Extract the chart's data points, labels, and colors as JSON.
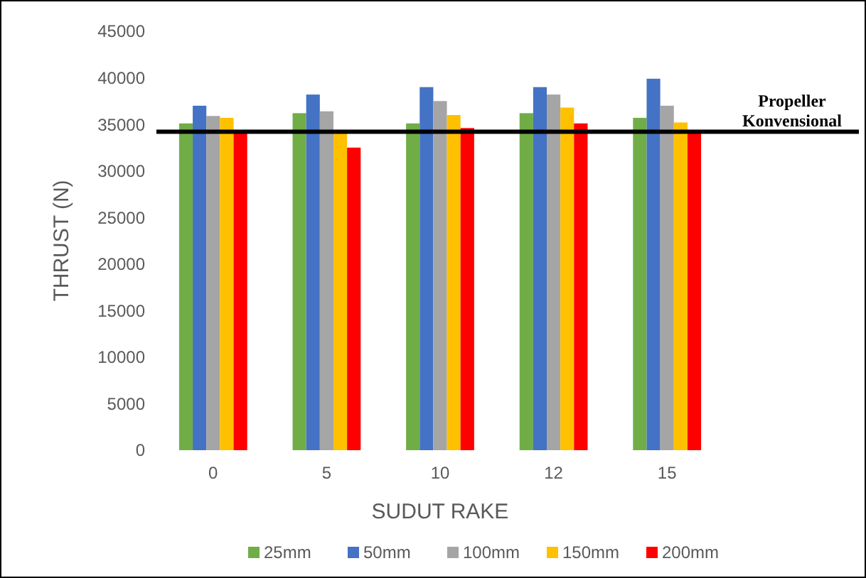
{
  "chart_data": {
    "type": "bar",
    "xlabel": "SUDUT RAKE",
    "ylabel": "THRUST (N)",
    "categories": [
      "0",
      "5",
      "10",
      "12",
      "15"
    ],
    "series": [
      {
        "name": "25mm",
        "color": "#70ad47",
        "values": [
          35100,
          36200,
          35100,
          36200,
          35700
        ]
      },
      {
        "name": "50mm",
        "color": "#4472c4",
        "values": [
          37000,
          38200,
          39000,
          39000,
          39900
        ]
      },
      {
        "name": "100mm",
        "color": "#a5a5a5",
        "values": [
          35900,
          36400,
          37500,
          38200,
          37000
        ]
      },
      {
        "name": "150mm",
        "color": "#ffc000",
        "values": [
          35700,
          34200,
          36000,
          36800,
          35200
        ]
      },
      {
        "name": "200mm",
        "color": "#ff0000",
        "values": [
          34200,
          32500,
          34600,
          35100,
          34200
        ]
      }
    ],
    "ylim": [
      0,
      45000
    ],
    "yticks": [
      0,
      5000,
      10000,
      15000,
      20000,
      25000,
      30000,
      35000,
      40000,
      45000
    ],
    "ref_lines": [
      {
        "axis": "y",
        "value": 34200,
        "label": "Propeller Konvensional",
        "color": "#000000"
      }
    ],
    "grid": false,
    "legend": "bottom"
  }
}
